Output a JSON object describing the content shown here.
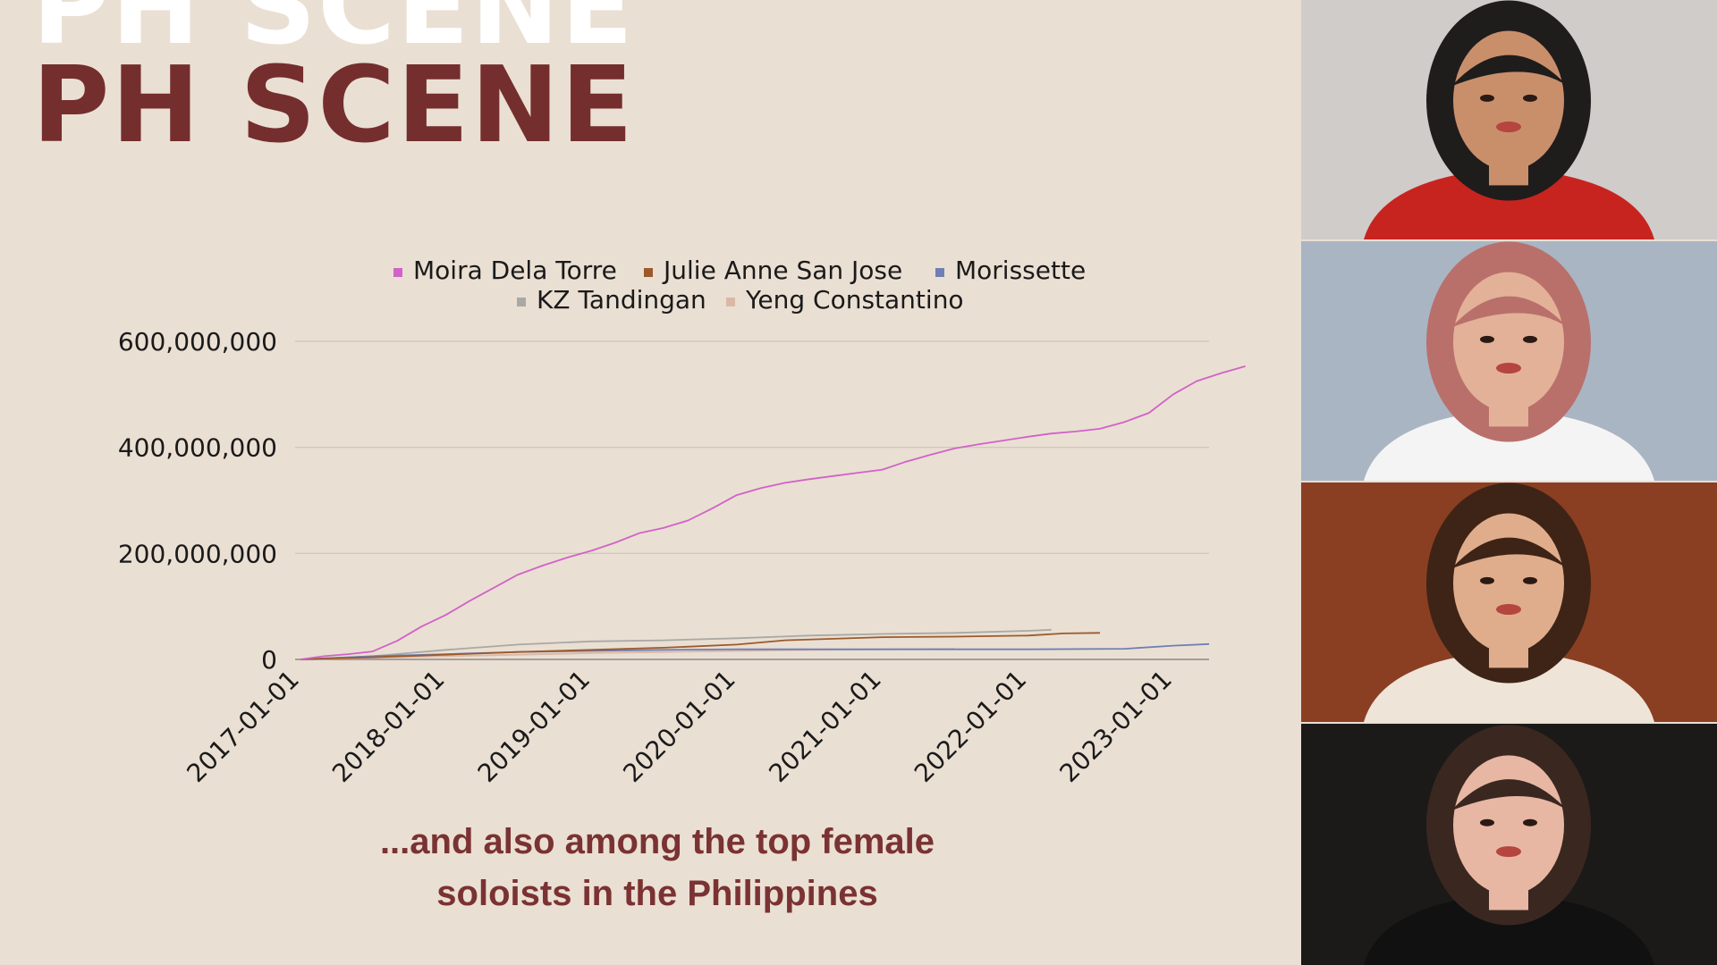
{
  "slide": {
    "heading_ghost": "PH SCENE",
    "heading": "PH SCENE",
    "caption_line_1": "...and also among the top female",
    "caption_line_2": "soloists in the Philippines"
  },
  "chart_data": {
    "type": "line",
    "title": "",
    "xlabel": "",
    "ylabel": "",
    "x_ticks": [
      "2017-01-01",
      "2018-01-01",
      "2019-01-01",
      "2020-01-01",
      "2021-01-01",
      "2022-01-01",
      "2023-01-01"
    ],
    "y_ticks": [
      0,
      200000000,
      400000000,
      600000000
    ],
    "y_tick_labels": [
      "0",
      "200,000,000",
      "400,000,000",
      "600,000,000"
    ],
    "ylim": [
      0,
      600000000
    ],
    "xlim": [
      "2017-01-01",
      "2023-04-01"
    ],
    "grid": true,
    "legend_position": "top",
    "series": [
      {
        "name": "Moira Dela Torre",
        "color": "#d162c8",
        "points": [
          [
            "2017-01-01",
            0
          ],
          [
            "2017-03-01",
            6000000
          ],
          [
            "2017-05-01",
            10000000
          ],
          [
            "2017-07-01",
            15000000
          ],
          [
            "2017-09-01",
            35000000
          ],
          [
            "2017-11-01",
            62000000
          ],
          [
            "2018-01-01",
            84000000
          ],
          [
            "2018-03-01",
            110000000
          ],
          [
            "2018-05-01",
            135000000
          ],
          [
            "2018-07-01",
            160000000
          ],
          [
            "2018-09-01",
            177000000
          ],
          [
            "2018-11-01",
            192000000
          ],
          [
            "2019-01-01",
            205000000
          ],
          [
            "2019-03-01",
            220000000
          ],
          [
            "2019-05-01",
            238000000
          ],
          [
            "2019-07-01",
            248000000
          ],
          [
            "2019-09-01",
            262000000
          ],
          [
            "2019-11-01",
            285000000
          ],
          [
            "2020-01-01",
            310000000
          ],
          [
            "2020-03-01",
            323000000
          ],
          [
            "2020-05-01",
            333000000
          ],
          [
            "2020-07-01",
            340000000
          ],
          [
            "2020-09-01",
            346000000
          ],
          [
            "2020-11-01",
            352000000
          ],
          [
            "2021-01-01",
            358000000
          ],
          [
            "2021-03-01",
            373000000
          ],
          [
            "2021-05-01",
            386000000
          ],
          [
            "2021-07-01",
            398000000
          ],
          [
            "2021-09-01",
            406000000
          ],
          [
            "2021-11-01",
            413000000
          ],
          [
            "2022-01-01",
            420000000
          ],
          [
            "2022-03-01",
            426000000
          ],
          [
            "2022-05-01",
            430000000
          ],
          [
            "2022-07-01",
            435000000
          ],
          [
            "2022-09-01",
            448000000
          ],
          [
            "2022-11-01",
            465000000
          ],
          [
            "2023-01-01",
            500000000
          ],
          [
            "2023-03-01",
            525000000
          ],
          [
            "2023-05-01",
            540000000
          ],
          [
            "2023-07-01",
            553000000
          ]
        ]
      },
      {
        "name": "Julie Anne San Jose",
        "color": "#9c5a2c",
        "points": [
          [
            "2017-01-01",
            0
          ],
          [
            "2017-07-01",
            4000000
          ],
          [
            "2018-01-01",
            9000000
          ],
          [
            "2018-07-01",
            14000000
          ],
          [
            "2019-01-01",
            18000000
          ],
          [
            "2019-07-01",
            22000000
          ],
          [
            "2020-01-01",
            28000000
          ],
          [
            "2020-05-01",
            36000000
          ],
          [
            "2021-01-01",
            42000000
          ],
          [
            "2021-07-01",
            43000000
          ],
          [
            "2022-01-01",
            45000000
          ],
          [
            "2022-04-01",
            49000000
          ],
          [
            "2022-07-01",
            50000000
          ]
        ]
      },
      {
        "name": "Morissette",
        "color": "#6f7fb5",
        "points": [
          [
            "2017-01-01",
            0
          ],
          [
            "2017-07-01",
            6000000
          ],
          [
            "2018-01-01",
            10000000
          ],
          [
            "2018-07-01",
            14000000
          ],
          [
            "2019-01-01",
            16000000
          ],
          [
            "2019-07-01",
            18000000
          ],
          [
            "2020-01-01",
            19000000
          ],
          [
            "2021-01-01",
            19000000
          ],
          [
            "2022-01-01",
            19000000
          ],
          [
            "2022-09-01",
            20000000
          ],
          [
            "2023-01-01",
            26000000
          ],
          [
            "2023-04-01",
            29000000
          ]
        ]
      },
      {
        "name": "KZ Tandingan",
        "color": "#a8a9a4",
        "points": [
          [
            "2017-01-01",
            0
          ],
          [
            "2017-07-01",
            6000000
          ],
          [
            "2018-01-01",
            18000000
          ],
          [
            "2018-07-01",
            28000000
          ],
          [
            "2019-01-01",
            34000000
          ],
          [
            "2019-07-01",
            36000000
          ],
          [
            "2020-01-01",
            40000000
          ],
          [
            "2020-07-01",
            45000000
          ],
          [
            "2021-01-01",
            48000000
          ],
          [
            "2021-07-01",
            50000000
          ],
          [
            "2022-01-01",
            54000000
          ],
          [
            "2022-03-01",
            56000000
          ]
        ]
      },
      {
        "name": "Yeng Constantino",
        "color": "#dbb8a6",
        "points": [
          [
            "2017-01-01",
            0
          ],
          [
            "2017-07-01",
            3000000
          ],
          [
            "2018-01-01",
            6000000
          ],
          [
            "2018-07-01",
            9000000
          ],
          [
            "2019-01-01",
            12000000
          ],
          [
            "2019-07-01",
            14000000
          ],
          [
            "2020-01-01",
            16000000
          ],
          [
            "2020-07-01",
            18000000
          ],
          [
            "2021-01-01",
            19000000
          ],
          [
            "2021-07-01",
            20000000
          ]
        ]
      }
    ]
  },
  "photos": [
    {
      "name": "artist-photo-1",
      "bg": "#cfccca",
      "skin": "#c98f6b",
      "hair": "#1f1c1c",
      "accent": "#c8241f"
    },
    {
      "name": "artist-photo-2",
      "bg": "#a9b5c3",
      "skin": "#e3b197",
      "hair": "#b9706b",
      "accent": "#f4f4f4"
    },
    {
      "name": "artist-photo-3",
      "bg": "#8a3f22",
      "skin": "#e0ad8c",
      "hair": "#3e2416",
      "accent": "#efe4d8"
    },
    {
      "name": "artist-photo-4",
      "bg": "#1b1a18",
      "skin": "#e8b7a4",
      "hair": "#3a2820",
      "accent": "#111111"
    }
  ]
}
